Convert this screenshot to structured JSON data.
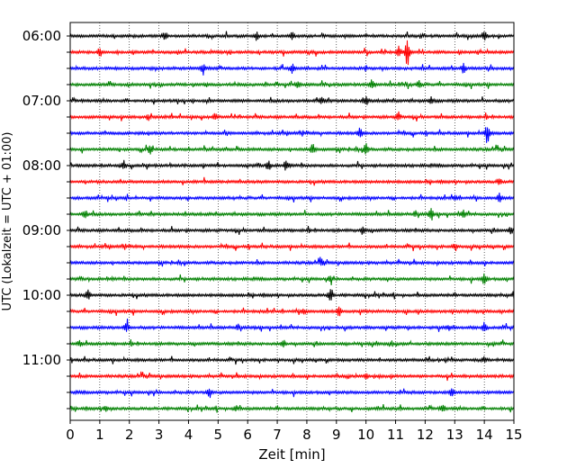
{
  "chart_data": {
    "type": "line",
    "subtype": "helicorder-seismogram",
    "xlabel": "Zeit  [min]",
    "ylabel": "UTC (Lokalzeit = UTC + 01:00)",
    "xlim": [
      0,
      15
    ],
    "x_ticks": [
      "0",
      "1",
      "2",
      "3",
      "4",
      "5",
      "6",
      "7",
      "8",
      "9",
      "10",
      "11",
      "12",
      "13",
      "14",
      "15"
    ],
    "y_tick_labels": [
      "06:00",
      "07:00",
      "08:00",
      "09:00",
      "10:00",
      "11:00"
    ],
    "row_interval_minutes": 15,
    "grid": "vertical-dotted",
    "trace_colors": [
      "#000000",
      "#ff0000",
      "#0000ff",
      "#008000"
    ],
    "rows": [
      {
        "start": "06:00",
        "color": "#000000",
        "events": [
          [
            3.2,
            0.6
          ],
          [
            6.3,
            0.5
          ],
          [
            7.5,
            0.6
          ],
          [
            14.0,
            0.8
          ]
        ]
      },
      {
        "start": "06:15",
        "color": "#ff0000",
        "events": [
          [
            1.0,
            0.5
          ],
          [
            11.4,
            2.0
          ],
          [
            11.1,
            0.8
          ]
        ]
      },
      {
        "start": "06:30",
        "color": "#0000ff",
        "events": [
          [
            4.5,
            0.7
          ],
          [
            7.5,
            0.6
          ],
          [
            13.3,
            0.6
          ]
        ]
      },
      {
        "start": "06:45",
        "color": "#008000",
        "events": [
          [
            7.7,
            0.7
          ],
          [
            10.2,
            0.6
          ],
          [
            11.8,
            0.5
          ]
        ]
      },
      {
        "start": "07:00",
        "color": "#000000",
        "events": [
          [
            8.5,
            0.5
          ],
          [
            10.0,
            0.6
          ],
          [
            12.2,
            0.5
          ]
        ]
      },
      {
        "start": "07:15",
        "color": "#ff0000",
        "events": [
          [
            4.9,
            0.5
          ],
          [
            11.1,
            0.6
          ]
        ]
      },
      {
        "start": "07:30",
        "color": "#0000ff",
        "events": [
          [
            9.8,
            0.7
          ],
          [
            14.1,
            1.4
          ]
        ]
      },
      {
        "start": "07:45",
        "color": "#008000",
        "events": [
          [
            2.7,
            0.6
          ],
          [
            8.2,
            0.7
          ],
          [
            10.0,
            0.8
          ]
        ]
      },
      {
        "start": "08:00",
        "color": "#000000",
        "events": [
          [
            1.8,
            0.6
          ],
          [
            6.7,
            0.7
          ],
          [
            7.3,
            0.6
          ]
        ]
      },
      {
        "start": "08:15",
        "color": "#ff0000",
        "events": [
          [
            14.5,
            0.5
          ]
        ]
      },
      {
        "start": "08:30",
        "color": "#0000ff",
        "events": [
          [
            14.5,
            0.6
          ],
          [
            13.0,
            0.4
          ]
        ]
      },
      {
        "start": "08:45",
        "color": "#008000",
        "events": [
          [
            0.5,
            0.6
          ],
          [
            12.2,
            0.8
          ],
          [
            13.3,
            0.5
          ]
        ]
      },
      {
        "start": "09:00",
        "color": "#000000",
        "events": [
          [
            9.9,
            0.6
          ],
          [
            14.9,
            0.5
          ]
        ]
      },
      {
        "start": "09:15",
        "color": "#ff0000",
        "events": [
          [
            13.0,
            0.4
          ]
        ]
      },
      {
        "start": "09:30",
        "color": "#0000ff",
        "events": [
          [
            8.5,
            0.4
          ]
        ]
      },
      {
        "start": "09:45",
        "color": "#008000",
        "events": [
          [
            8.8,
            0.5
          ],
          [
            14.0,
            0.8
          ]
        ]
      },
      {
        "start": "10:00",
        "color": "#000000",
        "events": [
          [
            0.6,
            0.7
          ],
          [
            8.8,
            1.1
          ],
          [
            15.0,
            0.5
          ]
        ]
      },
      {
        "start": "10:15",
        "color": "#ff0000",
        "events": [
          [
            9.1,
            0.8
          ],
          [
            7.9,
            0.4
          ]
        ]
      },
      {
        "start": "10:30",
        "color": "#0000ff",
        "events": [
          [
            1.9,
            0.9
          ],
          [
            14.0,
            0.6
          ],
          [
            12.8,
            0.4
          ]
        ]
      },
      {
        "start": "10:45",
        "color": "#008000",
        "events": [
          [
            0.3,
            0.4
          ],
          [
            7.2,
            0.5
          ]
        ]
      },
      {
        "start": "11:00",
        "color": "#000000",
        "events": [
          [
            14.0,
            0.4
          ]
        ]
      },
      {
        "start": "11:15",
        "color": "#ff0000",
        "events": [
          [
            10.0,
            0.3
          ]
        ]
      },
      {
        "start": "11:30",
        "color": "#0000ff",
        "events": [
          [
            4.7,
            0.6
          ],
          [
            12.9,
            0.5
          ]
        ]
      },
      {
        "start": "11:45",
        "color": "#008000",
        "events": [
          [
            1.2,
            0.4
          ],
          [
            5.6,
            0.4
          ],
          [
            12.6,
            0.5
          ]
        ]
      }
    ]
  }
}
